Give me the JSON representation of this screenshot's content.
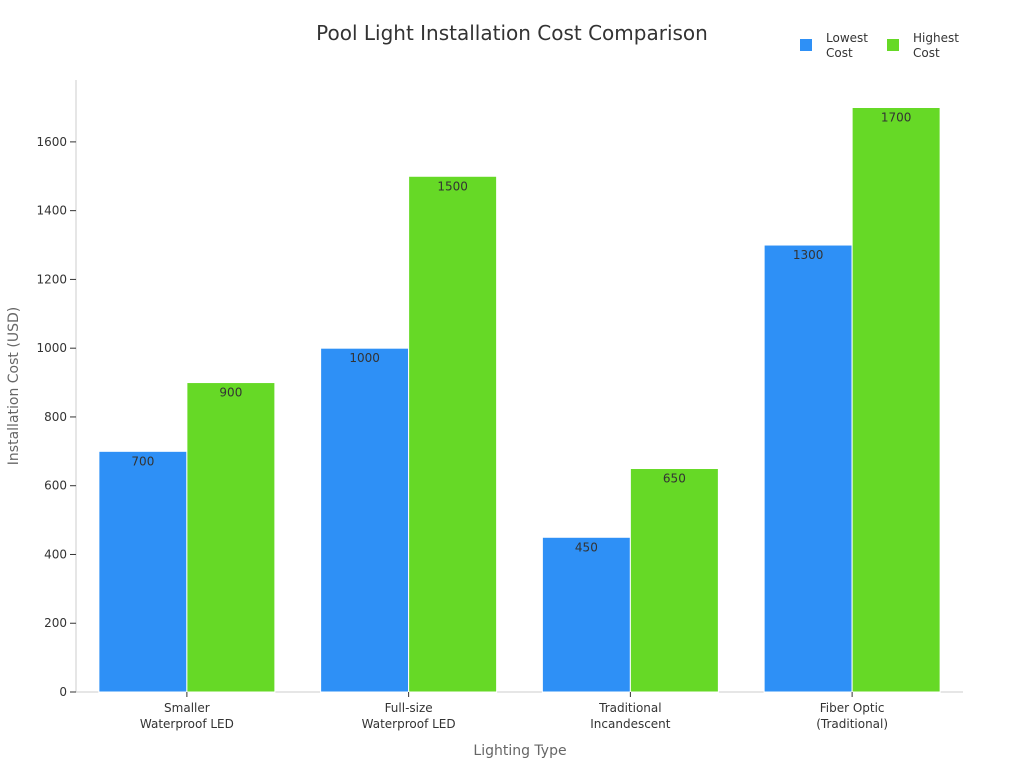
{
  "chart_data": {
    "type": "bar",
    "title": "Pool Light Installation Cost Comparison",
    "xlabel": "Lighting Type",
    "ylabel": "Installation Cost (USD)",
    "categories": [
      [
        "Smaller",
        "Waterproof LED"
      ],
      [
        "Full-size",
        "Waterproof LED"
      ],
      [
        "Traditional",
        "Incandescent"
      ],
      [
        "Fiber Optic",
        "(Traditional)"
      ]
    ],
    "series": [
      {
        "name": [
          "Lowest",
          "Cost"
        ],
        "color": "#2e90f6",
        "values": [
          700,
          1000,
          450,
          1300
        ]
      },
      {
        "name": [
          "Highest",
          "Cost"
        ],
        "color": "#66d926",
        "values": [
          900,
          1500,
          650,
          1700
        ]
      }
    ],
    "ylim": [
      0,
      1780
    ],
    "yticks": [
      0,
      200,
      400,
      600,
      800,
      1000,
      1200,
      1400,
      1600
    ],
    "grid": false,
    "legend": "top-right",
    "data_labels": true
  }
}
